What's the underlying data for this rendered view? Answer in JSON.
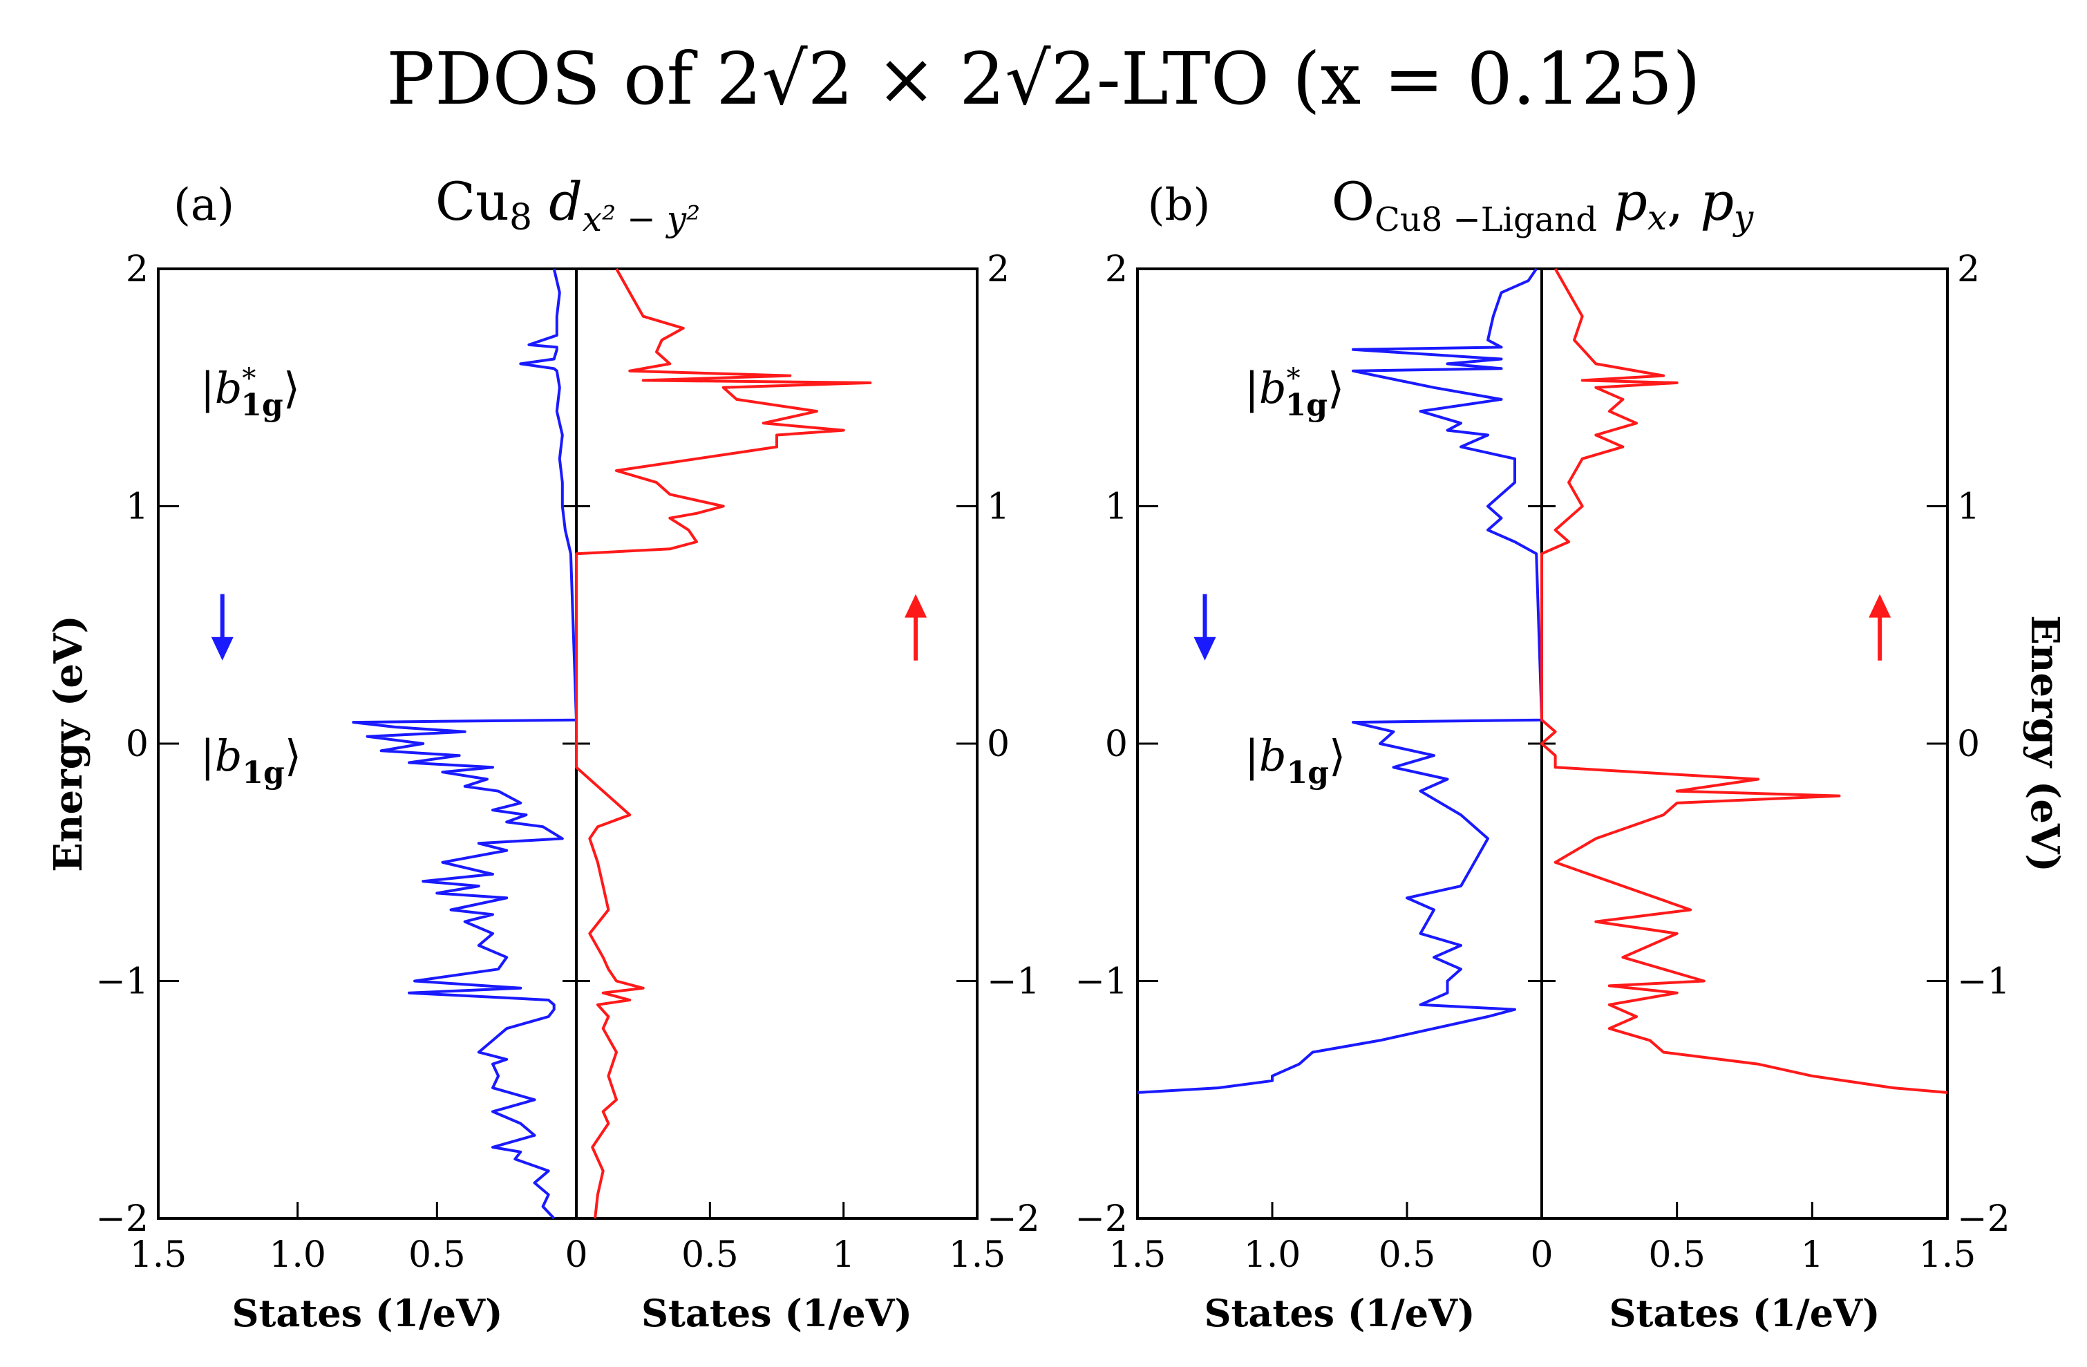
{
  "figure": {
    "title": "PDOS of 2√2 × 2√2-LTO (x = 0.125)",
    "colors": {
      "spin_down": "#1a1aff",
      "spin_up": "#ff1a1a",
      "axis": "#000000"
    }
  },
  "chart_data": [
    {
      "type": "line",
      "panel_label": "(a)",
      "title": "Cu8 d_{x^2-y^2}",
      "title_parts": {
        "main": "Cu",
        "main_sub": "8",
        "orb": "d",
        "orb_sub": "x² − y²"
      },
      "ylabel": "Energy (eV)",
      "ylim": [
        -2,
        2
      ],
      "yticks": [
        -2,
        -1,
        0,
        1,
        2
      ],
      "ytick_labels_left": [
        "−2",
        "−1",
        "0",
        "1",
        "2"
      ],
      "ytick_labels_right": [
        "−2",
        "−1",
        "0",
        "1",
        "2"
      ],
      "left_xlim": [
        0,
        1.5
      ],
      "left_xticks": [
        1.5,
        1.0,
        0.5,
        0
      ],
      "left_xtick_labels": [
        "1.5",
        "1.0",
        "0.5",
        "0"
      ],
      "right_xlim": [
        0,
        1.5
      ],
      "right_xticks": [
        0.5,
        1,
        1.5
      ],
      "right_xtick_labels": [
        "0.5",
        "1",
        "1.5"
      ],
      "xlabel_left": "States (1/eV)",
      "xlabel_right": "States (1/eV)",
      "annotations": [
        {
          "text": "|b*1g⟩",
          "main": "b",
          "sup": "*",
          "sub": "1g",
          "energy": 1.5,
          "states_left": 1.25
        },
        {
          "text": "|b1g⟩",
          "main": "b",
          "sup": "",
          "sub": "1g",
          "energy": -0.05,
          "states_left": 1.25
        }
      ],
      "spin_arrows": [
        {
          "name": "spin-down-arrow",
          "direction": "down",
          "states_left": 1.27,
          "energy_from": 0.63,
          "energy_to": 0.35,
          "symbol": "↓"
        },
        {
          "name": "spin-up-arrow",
          "direction": "up",
          "states_right": 1.27,
          "energy_from": 0.35,
          "energy_to": 0.63,
          "symbol": "↑"
        }
      ],
      "series": [
        {
          "name": "spin down",
          "side": "left",
          "color": "#1a1aff",
          "energy": [
            2.0,
            1.9,
            1.8,
            1.72,
            1.68,
            1.67,
            1.66,
            1.62,
            1.6,
            1.58,
            1.57,
            1.5,
            1.4,
            1.3,
            1.2,
            1.1,
            1.0,
            0.9,
            0.8,
            0.1,
            0.09,
            0.07,
            0.05,
            0.03,
            0.0,
            -0.03,
            -0.05,
            -0.08,
            -0.1,
            -0.12,
            -0.15,
            -0.18,
            -0.2,
            -0.25,
            -0.28,
            -0.3,
            -0.33,
            -0.35,
            -0.4,
            -0.42,
            -0.45,
            -0.5,
            -0.55,
            -0.58,
            -0.6,
            -0.63,
            -0.65,
            -0.7,
            -0.72,
            -0.75,
            -0.8,
            -0.85,
            -0.9,
            -0.95,
            -1.0,
            -1.03,
            -1.05,
            -1.08,
            -1.1,
            -1.12,
            -1.15,
            -1.2,
            -1.25,
            -1.3,
            -1.33,
            -1.35,
            -1.4,
            -1.45,
            -1.5,
            -1.55,
            -1.6,
            -1.65,
            -1.7,
            -1.72,
            -1.75,
            -1.8,
            -1.85,
            -1.9,
            -1.95,
            -2.0
          ],
          "states": [
            0.08,
            0.06,
            0.07,
            0.07,
            0.17,
            0.07,
            0.07,
            0.08,
            0.2,
            0.08,
            0.07,
            0.06,
            0.07,
            0.05,
            0.06,
            0.05,
            0.05,
            0.04,
            0.02,
            0.0,
            0.8,
            0.65,
            0.4,
            0.75,
            0.55,
            0.7,
            0.42,
            0.6,
            0.3,
            0.48,
            0.32,
            0.4,
            0.28,
            0.2,
            0.3,
            0.18,
            0.25,
            0.12,
            0.05,
            0.35,
            0.25,
            0.48,
            0.3,
            0.55,
            0.35,
            0.5,
            0.25,
            0.45,
            0.3,
            0.4,
            0.3,
            0.35,
            0.25,
            0.28,
            0.58,
            0.2,
            0.6,
            0.1,
            0.08,
            0.08,
            0.1,
            0.25,
            0.3,
            0.35,
            0.25,
            0.3,
            0.28,
            0.3,
            0.15,
            0.3,
            0.2,
            0.15,
            0.3,
            0.2,
            0.22,
            0.1,
            0.15,
            0.1,
            0.12,
            0.08
          ]
        },
        {
          "name": "spin up",
          "side": "right",
          "color": "#ff1a1a",
          "energy": [
            2.0,
            1.9,
            1.8,
            1.75,
            1.7,
            1.65,
            1.6,
            1.57,
            1.55,
            1.53,
            1.52,
            1.5,
            1.45,
            1.4,
            1.35,
            1.32,
            1.3,
            1.25,
            1.2,
            1.15,
            1.1,
            1.05,
            1.0,
            0.97,
            0.95,
            0.9,
            0.85,
            0.82,
            0.8,
            -0.1,
            -0.15,
            -0.2,
            -0.25,
            -0.3,
            -0.35,
            -0.4,
            -0.5,
            -0.6,
            -0.7,
            -0.8,
            -0.9,
            -0.95,
            -1.0,
            -1.03,
            -1.05,
            -1.08,
            -1.1,
            -1.15,
            -1.2,
            -1.3,
            -1.4,
            -1.5,
            -1.55,
            -1.6,
            -1.7,
            -1.8,
            -1.9,
            -2.0
          ],
          "states": [
            0.15,
            0.2,
            0.25,
            0.4,
            0.32,
            0.3,
            0.35,
            0.2,
            0.8,
            0.25,
            1.1,
            0.55,
            0.6,
            0.9,
            0.7,
            1.0,
            0.75,
            0.75,
            0.45,
            0.15,
            0.3,
            0.35,
            0.55,
            0.45,
            0.35,
            0.42,
            0.45,
            0.35,
            0.0,
            0.0,
            0.05,
            0.1,
            0.15,
            0.2,
            0.08,
            0.05,
            0.08,
            0.1,
            0.12,
            0.05,
            0.1,
            0.12,
            0.15,
            0.25,
            0.1,
            0.2,
            0.08,
            0.12,
            0.1,
            0.15,
            0.12,
            0.15,
            0.1,
            0.12,
            0.06,
            0.1,
            0.08,
            0.07
          ]
        }
      ]
    },
    {
      "type": "line",
      "panel_label": "(b)",
      "title": "O_{Cu8-Ligand} p_x, p_y",
      "title_parts": {
        "main": "O",
        "main_sub": "Cu8 −Ligand",
        "orb1": "p",
        "orb1_sub": "x",
        "sep": ", ",
        "orb2": "p",
        "orb2_sub": "y"
      },
      "ylabel": "Energy (eV)",
      "ylim": [
        -2,
        2
      ],
      "yticks": [
        -2,
        -1,
        0,
        1,
        2
      ],
      "ytick_labels_left": [
        "−2",
        "−1",
        "0",
        "1",
        "2"
      ],
      "ytick_labels_right": [
        "−2",
        "−1",
        "0",
        "1",
        "2"
      ],
      "left_xlim": [
        0,
        1.5
      ],
      "left_xticks": [
        1.5,
        1.0,
        0.5,
        0
      ],
      "left_xtick_labels": [
        "1.5",
        "1.0",
        "0.5",
        "0"
      ],
      "right_xlim": [
        0,
        1.5
      ],
      "right_xticks": [
        0.5,
        1,
        1.5
      ],
      "right_xtick_labels": [
        "0.5",
        "1",
        "1.5"
      ],
      "xlabel_left": "States (1/eV)",
      "xlabel_right": "States (1/eV)",
      "annotations": [
        {
          "text": "|b*1g⟩",
          "main": "b",
          "sup": "*",
          "sub": "1g",
          "energy": 1.5,
          "states_left": 1.0
        },
        {
          "text": "|b1g⟩",
          "main": "b",
          "sup": "",
          "sub": "1g",
          "energy": -0.05,
          "states_left": 1.0
        }
      ],
      "spin_arrows": [
        {
          "name": "spin-down-arrow",
          "direction": "down",
          "states_left": 1.25,
          "energy_from": 0.63,
          "energy_to": 0.35,
          "symbol": "↓"
        },
        {
          "name": "spin-up-arrow",
          "direction": "up",
          "states_right": 1.25,
          "energy_from": 0.35,
          "energy_to": 0.63,
          "symbol": "↑"
        }
      ],
      "series": [
        {
          "name": "spin down",
          "side": "left",
          "color": "#1a1aff",
          "energy": [
            2.0,
            1.95,
            1.9,
            1.8,
            1.7,
            1.67,
            1.66,
            1.62,
            1.6,
            1.58,
            1.57,
            1.5,
            1.45,
            1.4,
            1.35,
            1.32,
            1.3,
            1.25,
            1.2,
            1.1,
            1.0,
            0.95,
            0.9,
            0.85,
            0.8,
            0.1,
            0.09,
            0.05,
            0.0,
            -0.05,
            -0.1,
            -0.15,
            -0.2,
            -0.3,
            -0.4,
            -0.5,
            -0.6,
            -0.65,
            -0.7,
            -0.8,
            -0.85,
            -0.9,
            -0.95,
            -1.0,
            -1.05,
            -1.1,
            -1.12,
            -1.15,
            -1.2,
            -1.25,
            -1.3,
            -1.35,
            -1.4,
            -1.42,
            -1.45,
            -1.47
          ],
          "states": [
            0.02,
            0.05,
            0.15,
            0.18,
            0.2,
            0.15,
            0.7,
            0.15,
            0.35,
            0.15,
            0.7,
            0.4,
            0.15,
            0.45,
            0.3,
            0.35,
            0.2,
            0.3,
            0.1,
            0.1,
            0.2,
            0.15,
            0.2,
            0.1,
            0.02,
            0.0,
            0.7,
            0.55,
            0.6,
            0.4,
            0.55,
            0.35,
            0.45,
            0.3,
            0.2,
            0.25,
            0.3,
            0.5,
            0.4,
            0.45,
            0.3,
            0.4,
            0.3,
            0.35,
            0.35,
            0.45,
            0.1,
            0.2,
            0.4,
            0.6,
            0.85,
            0.9,
            1.0,
            1.0,
            1.2,
            1.5
          ]
        },
        {
          "name": "spin up",
          "side": "right",
          "color": "#ff1a1a",
          "energy": [
            2.0,
            1.9,
            1.8,
            1.7,
            1.6,
            1.55,
            1.53,
            1.52,
            1.5,
            1.45,
            1.4,
            1.35,
            1.3,
            1.25,
            1.2,
            1.1,
            1.0,
            0.9,
            0.85,
            0.8,
            0.1,
            0.05,
            0.0,
            -0.05,
            -0.1,
            -0.15,
            -0.2,
            -0.22,
            -0.25,
            -0.3,
            -0.4,
            -0.5,
            -0.6,
            -0.7,
            -0.75,
            -0.8,
            -0.9,
            -1.0,
            -1.02,
            -1.05,
            -1.1,
            -1.15,
            -1.2,
            -1.25,
            -1.3,
            -1.35,
            -1.4,
            -1.45,
            -1.47
          ],
          "states": [
            0.05,
            0.1,
            0.15,
            0.12,
            0.2,
            0.45,
            0.15,
            0.5,
            0.2,
            0.3,
            0.25,
            0.35,
            0.2,
            0.3,
            0.15,
            0.1,
            0.15,
            0.05,
            0.1,
            0.0,
            0.0,
            0.05,
            0.0,
            0.05,
            0.05,
            0.8,
            0.5,
            1.1,
            0.5,
            0.45,
            0.2,
            0.05,
            0.3,
            0.55,
            0.2,
            0.5,
            0.3,
            0.6,
            0.25,
            0.5,
            0.25,
            0.35,
            0.25,
            0.4,
            0.45,
            0.8,
            1.0,
            1.3,
            1.5
          ]
        }
      ]
    }
  ]
}
